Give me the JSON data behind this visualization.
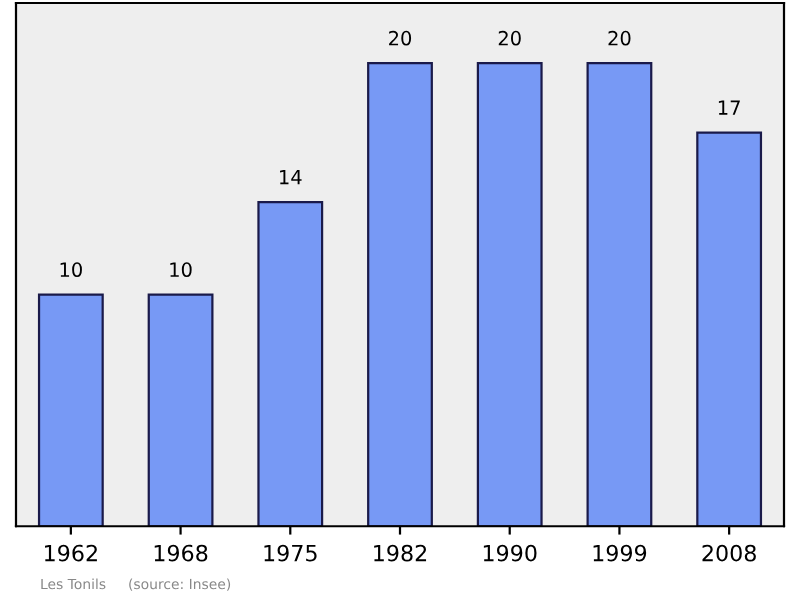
{
  "chart_data": {
    "type": "bar",
    "categories": [
      "1962",
      "1968",
      "1975",
      "1982",
      "1990",
      "1999",
      "2008"
    ],
    "values": [
      10,
      10,
      14,
      20,
      20,
      20,
      17
    ],
    "color": "#7799f5",
    "data_labels": true,
    "annotations": [
      "Les Tonils",
      "(source: Insee)"
    ]
  }
}
